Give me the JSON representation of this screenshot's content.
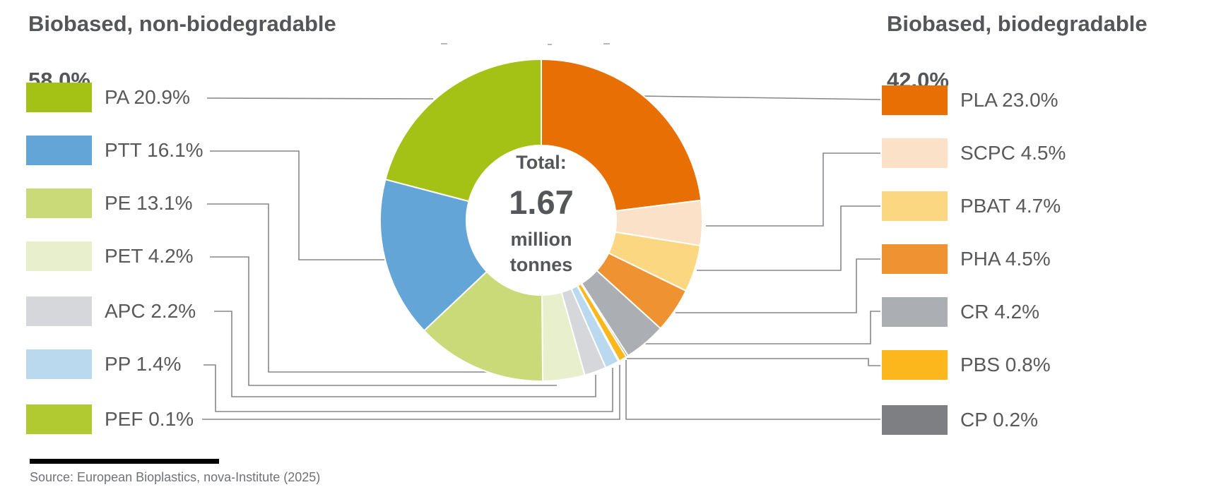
{
  "header_left": {
    "title": "Biobased, non-biodegradable",
    "percent": "58.0%"
  },
  "header_right": {
    "title": "Biobased, biodegradable",
    "percent": "42.0%"
  },
  "center": {
    "label": "Total:",
    "value": "1.67",
    "unit_line1": "million",
    "unit_line2": "tonnes"
  },
  "source": {
    "text": "Source: European Bioplastics, nova-Institute (2025)"
  },
  "chart_data": {
    "type": "pie",
    "subtype": "donut",
    "total_label": "Total: 1.67 million tonnes",
    "total_value": 1.67,
    "total_unit": "million tonnes",
    "direction": "clockwise",
    "start_angle_deg": 0,
    "inner_radius_ratio": 0.465,
    "legend_position": "left-and-right",
    "groups": [
      {
        "name": "Biobased, non-biodegradable",
        "percent": 58.0,
        "side": "left"
      },
      {
        "name": "Biobased, biodegradable",
        "percent": 42.0,
        "side": "right"
      }
    ],
    "segments": [
      {
        "name": "PA",
        "label": "PA 20.9%",
        "percent": 20.9,
        "color": "#a4c216",
        "group": "Biobased, non-biodegradable"
      },
      {
        "name": "PTT",
        "label": "PTT 16.1%",
        "percent": 16.1,
        "color": "#64a5d7",
        "group": "Biobased, non-biodegradable"
      },
      {
        "name": "PE",
        "label": "PE 13.1%",
        "percent": 13.1,
        "color": "#cbda79",
        "group": "Biobased, non-biodegradable"
      },
      {
        "name": "PET",
        "label": "PET 4.2%",
        "percent": 4.2,
        "color": "#e8efcd",
        "group": "Biobased, non-biodegradable"
      },
      {
        "name": "APC",
        "label": "APC 2.2%",
        "percent": 2.2,
        "color": "#d6d7da",
        "group": "Biobased, non-biodegradable"
      },
      {
        "name": "PP",
        "label": "PP 1.4%",
        "percent": 1.4,
        "color": "#bad9ee",
        "group": "Biobased, non-biodegradable"
      },
      {
        "name": "PEF",
        "label": "PEF 0.1%",
        "percent": 0.1,
        "color": "#b2ca32",
        "group": "Biobased, non-biodegradable"
      },
      {
        "name": "PLA",
        "label": "PLA 23.0%",
        "percent": 23.0,
        "color": "#e76f03",
        "group": "Biobased, biodegradable"
      },
      {
        "name": "SCPC",
        "label": "SCPC 4.5%",
        "percent": 4.5,
        "color": "#fae1c8",
        "group": "Biobased, biodegradable"
      },
      {
        "name": "PBAT",
        "label": "PBAT 4.7%",
        "percent": 4.7,
        "color": "#fcd781",
        "group": "Biobased, biodegradable"
      },
      {
        "name": "PHA",
        "label": "PHA 4.5%",
        "percent": 4.5,
        "color": "#ee9232",
        "group": "Biobased, biodegradable"
      },
      {
        "name": "CR",
        "label": "CR 4.2%",
        "percent": 4.2,
        "color": "#abaeb3",
        "group": "Biobased, biodegradable"
      },
      {
        "name": "PBS",
        "label": "PBS 0.8%",
        "percent": 0.8,
        "color": "#fbb71b",
        "group": "Biobased, biodegradable"
      },
      {
        "name": "CP",
        "label": "CP 0.2%",
        "percent": 0.2,
        "color": "#7d7f82",
        "group": "Biobased, biodegradable"
      }
    ],
    "draw_order": [
      "PLA",
      "SCPC",
      "PBAT",
      "PHA",
      "CR",
      "CP",
      "PBS",
      "PEF",
      "PP",
      "APC",
      "PET",
      "PE",
      "PTT",
      "PA"
    ]
  }
}
